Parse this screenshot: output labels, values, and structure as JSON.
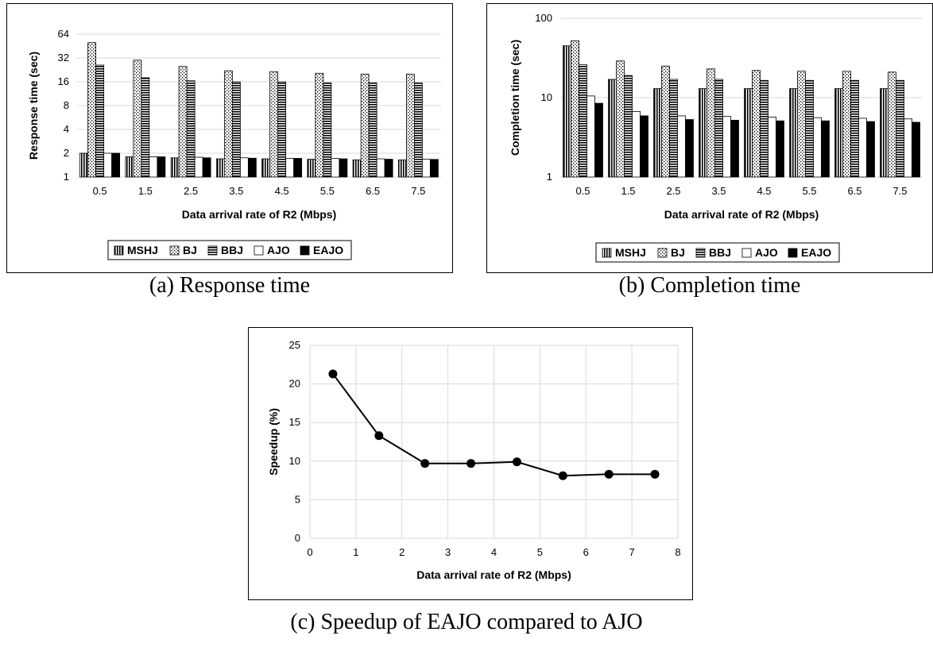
{
  "captions": {
    "a": "(a) Response time",
    "b": "(b) Completion time",
    "c": "(c) Speedup of EAJO compared to AJO"
  },
  "colors": {
    "grid": "#d9d9d9",
    "bar_stroke": "#000000",
    "line": "#000000"
  },
  "chart_data": [
    {
      "type": "bar",
      "yscale": "log2",
      "categories": [
        "0.5",
        "1.5",
        "2.5",
        "3.5",
        "4.5",
        "5.5",
        "6.5",
        "7.5"
      ],
      "yticks": [
        "1",
        "2",
        "4",
        "8",
        "16",
        "32",
        "64"
      ],
      "ylim": [
        1,
        64
      ],
      "xlabel": "Data arrival rate of R2 (Mbps)",
      "ylabel": "Response time (sec)",
      "legend_position": "bottom",
      "series": [
        {
          "name": "MSHJ",
          "pattern": "vertical",
          "values": [
            2.0,
            1.8,
            1.75,
            1.7,
            1.7,
            1.68,
            1.65,
            1.65
          ]
        },
        {
          "name": "BJ",
          "pattern": "dots",
          "values": [
            50,
            30,
            25,
            22,
            21.5,
            20.5,
            20,
            20
          ]
        },
        {
          "name": "BBJ",
          "pattern": "horizontal",
          "values": [
            26,
            18,
            16.5,
            16,
            16,
            15.5,
            15.5,
            15.5
          ]
        },
        {
          "name": "AJO",
          "pattern": "white",
          "values": [
            2.0,
            1.8,
            1.78,
            1.75,
            1.72,
            1.72,
            1.7,
            1.68
          ]
        },
        {
          "name": "EAJO",
          "pattern": "black",
          "values": [
            2.0,
            1.8,
            1.75,
            1.73,
            1.72,
            1.7,
            1.68,
            1.67
          ]
        }
      ]
    },
    {
      "type": "bar",
      "yscale": "log10",
      "categories": [
        "0.5",
        "1.5",
        "2.5",
        "3.5",
        "4.5",
        "5.5",
        "6.5",
        "7.5"
      ],
      "yticks": [
        "1",
        "10",
        "100"
      ],
      "ylim": [
        1,
        100
      ],
      "xlabel": "Data arrival rate of R2 (Mbps)",
      "ylabel": "Completion time (sec)",
      "legend_position": "bottom",
      "series": [
        {
          "name": "MSHJ",
          "pattern": "vertical",
          "values": [
            45,
            17,
            13,
            13,
            13,
            13,
            13,
            13
          ]
        },
        {
          "name": "BJ",
          "pattern": "dots",
          "values": [
            52,
            29,
            25,
            23,
            22,
            21.5,
            21.5,
            21
          ]
        },
        {
          "name": "BBJ",
          "pattern": "horizontal",
          "values": [
            26,
            19,
            17,
            17,
            16.5,
            16.5,
            16.5,
            16.5
          ]
        },
        {
          "name": "AJO",
          "pattern": "white",
          "values": [
            10.5,
            6.7,
            5.9,
            5.8,
            5.7,
            5.6,
            5.5,
            5.4
          ]
        },
        {
          "name": "EAJO",
          "pattern": "black",
          "values": [
            8.5,
            5.9,
            5.3,
            5.2,
            5.1,
            5.1,
            5.0,
            4.9
          ]
        }
      ]
    },
    {
      "type": "line",
      "x": [
        0.5,
        1.5,
        2.5,
        3.5,
        4.5,
        5.5,
        6.5,
        7.5
      ],
      "y": [
        21.3,
        13.3,
        9.7,
        9.7,
        9.9,
        8.1,
        8.3,
        8.3
      ],
      "xticks": [
        "0",
        "1",
        "2",
        "3",
        "4",
        "5",
        "6",
        "7",
        "8"
      ],
      "yticks": [
        "0",
        "5",
        "10",
        "15",
        "20",
        "25"
      ],
      "xlim": [
        0,
        8
      ],
      "ylim": [
        0,
        25
      ],
      "xlabel": "Data arrival rate of R2 (Mbps)",
      "ylabel": "Speedup (%)",
      "grid": true
    }
  ]
}
